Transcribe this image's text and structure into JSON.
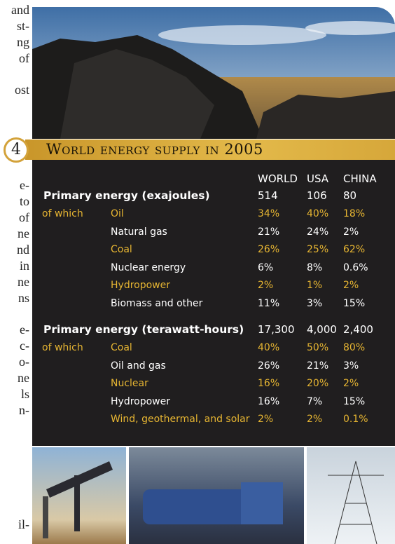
{
  "side_text": [
    "and",
    "st-",
    "ng",
    "of",
    "ost",
    "e-",
    "to",
    "of",
    "ne",
    "nd",
    "in",
    "ne",
    "ns",
    "e-",
    "c-",
    "o-",
    "ne",
    "ls",
    "n-",
    "il-"
  ],
  "banner": {
    "number": "4",
    "title": "World energy supply in 2005"
  },
  "table": {
    "columns": [
      "WORLD",
      "USA",
      "CHINA"
    ],
    "sections": [
      {
        "title": "Primary energy (exajoules)",
        "totals": [
          "514",
          "106",
          "80"
        ],
        "rows": [
          {
            "prefix": "of which",
            "label": "Oil",
            "values": [
              "34%",
              "40%",
              "18%"
            ],
            "highlight": true
          },
          {
            "label": "Natural gas",
            "values": [
              "21%",
              "24%",
              "2%"
            ],
            "highlight": false
          },
          {
            "label": "Coal",
            "values": [
              "26%",
              "25%",
              "62%"
            ],
            "highlight": true
          },
          {
            "label": "Nuclear energy",
            "values": [
              "6%",
              "8%",
              "0.6%"
            ],
            "highlight": false
          },
          {
            "label": "Hydropower",
            "values": [
              "2%",
              "1%",
              "2%"
            ],
            "highlight": true
          },
          {
            "label": "Biomass and other",
            "values": [
              "11%",
              "3%",
              "15%"
            ],
            "highlight": false
          }
        ]
      },
      {
        "title": "Primary energy (terawatt-hours)",
        "totals": [
          "17,300",
          "4,000",
          "2,400"
        ],
        "rows": [
          {
            "prefix": "of which",
            "label": "Coal",
            "values": [
              "40%",
              "50%",
              "80%"
            ],
            "highlight": true
          },
          {
            "label": "Oil and gas",
            "values": [
              "26%",
              "21%",
              "3%"
            ],
            "highlight": false
          },
          {
            "label": "Nuclear",
            "values": [
              "16%",
              "20%",
              "2%"
            ],
            "highlight": true
          },
          {
            "label": "Hydropower",
            "values": [
              "16%",
              "7%",
              "15%"
            ],
            "highlight": false
          },
          {
            "label": "Wind, geothermal, and solar",
            "values": [
              "2%",
              "2%",
              "0.1%"
            ],
            "highlight": true
          }
        ]
      }
    ]
  }
}
